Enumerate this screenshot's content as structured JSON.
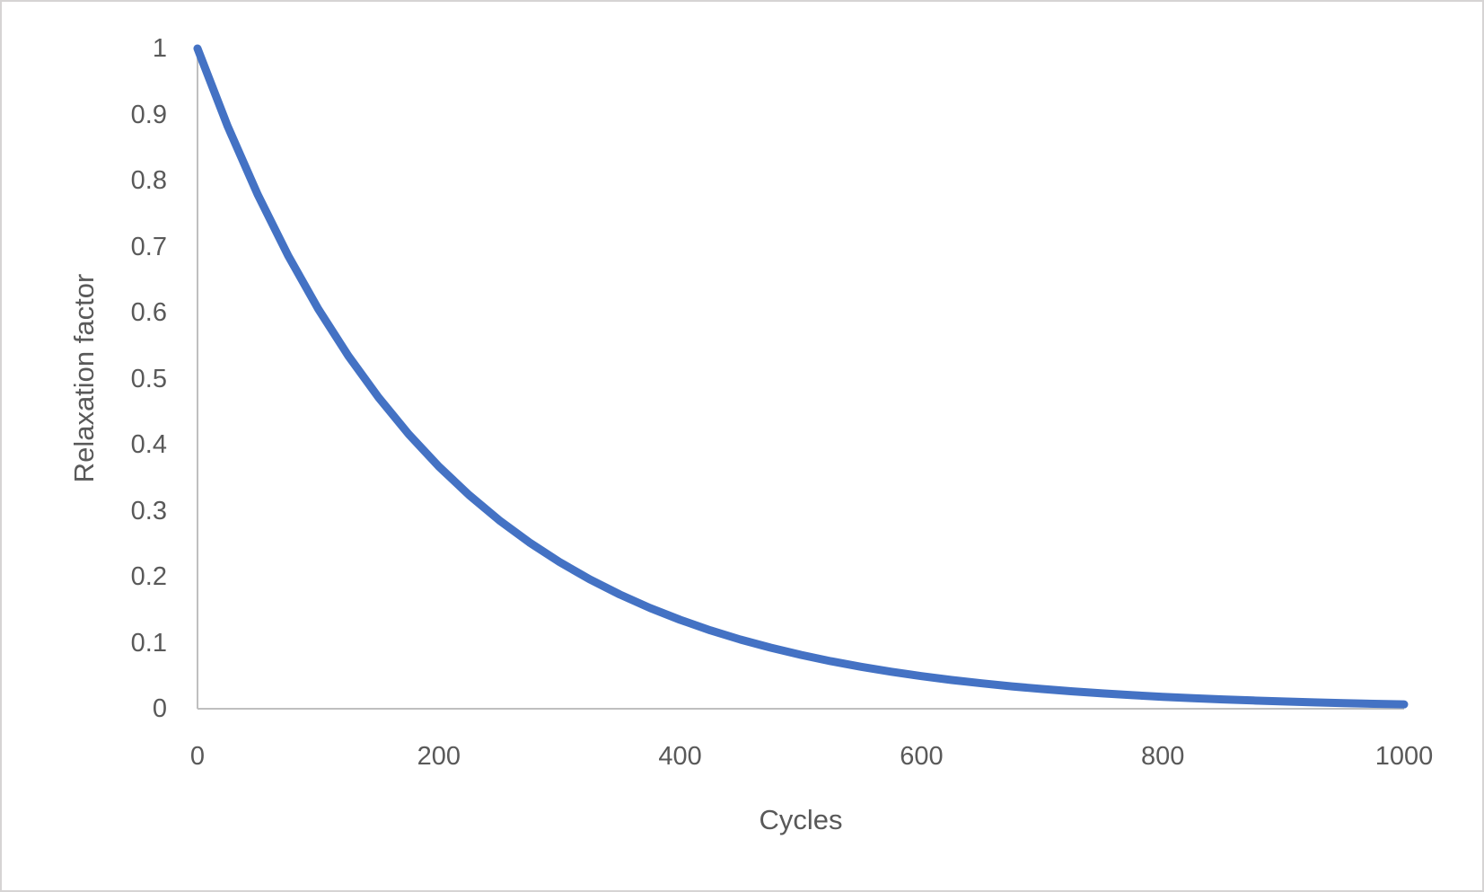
{
  "colors": {
    "series_blue": "#4472C4",
    "axis_line": "#BFBFBF",
    "label_text": "#595959",
    "frame_border": "#D6D4D4",
    "background": "#FFFFFF"
  },
  "chart_data": {
    "type": "line",
    "title": "",
    "xlabel": "Cycles",
    "ylabel": "Relaxation factor",
    "xlim": [
      0,
      1000
    ],
    "ylim": [
      0,
      1
    ],
    "grid": false,
    "legend": "none",
    "x_ticks": [
      0,
      200,
      400,
      600,
      800,
      1000
    ],
    "x_tick_labels": [
      "0",
      "200",
      "400",
      "600",
      "800",
      "1000"
    ],
    "y_ticks": [
      0,
      0.1,
      0.2,
      0.3,
      0.4,
      0.5,
      0.6,
      0.7,
      0.8,
      0.9,
      1
    ],
    "y_tick_labels": [
      "0",
      "0.1",
      "0.2",
      "0.3",
      "0.4",
      "0.5",
      "0.6",
      "0.7",
      "0.8",
      "0.9",
      "1"
    ],
    "series": [
      {
        "name": "Relaxation factor",
        "color": "#4472C4",
        "x": [
          0,
          25,
          50,
          75,
          100,
          125,
          150,
          175,
          200,
          225,
          250,
          275,
          300,
          325,
          350,
          375,
          400,
          425,
          450,
          475,
          500,
          525,
          550,
          575,
          600,
          625,
          650,
          675,
          700,
          725,
          750,
          775,
          800,
          825,
          850,
          875,
          900,
          925,
          950,
          975,
          1000
        ],
        "y": [
          1.0,
          0.88222,
          0.77832,
          0.68665,
          0.60577,
          0.53442,
          0.4715,
          0.41597,
          0.36697,
          0.32375,
          0.28562,
          0.25199,
          0.22231,
          0.19612,
          0.17302,
          0.15265,
          0.13466,
          0.11881,
          0.10481,
          0.09247,
          0.08157,
          0.07197,
          0.06349,
          0.05601,
          0.04942,
          0.0436,
          0.03846,
          0.03393,
          0.02994,
          0.02641,
          0.0233,
          0.02055,
          0.01813,
          0.016,
          0.01411,
          0.01245,
          0.01098,
          0.00969,
          0.00855,
          0.00754,
          0.00665
        ]
      }
    ]
  }
}
